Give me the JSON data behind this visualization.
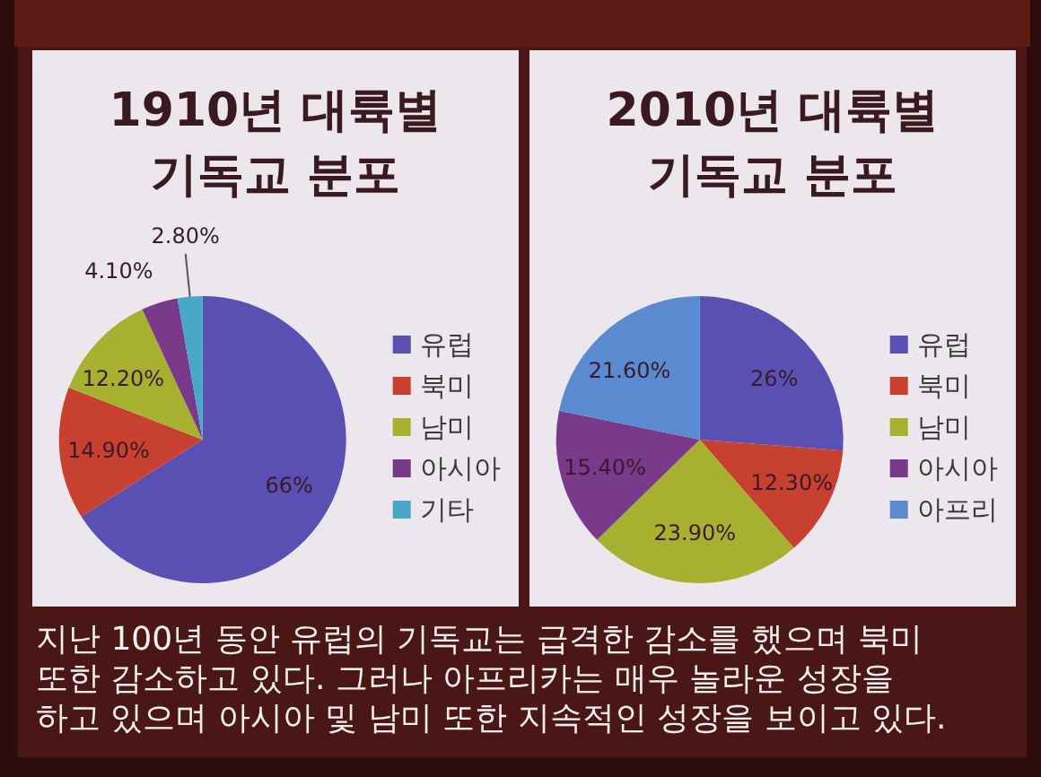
{
  "chart_data": [
    {
      "type": "pie",
      "title": "1910년 대륙별 기독교 분포",
      "categories": [
        "유럽",
        "북미",
        "남미",
        "아시아",
        "기타"
      ],
      "values": [
        66,
        14.9,
        12.2,
        4.1,
        2.8
      ],
      "colors": [
        "#5a50b4",
        "#c84030",
        "#a8b030",
        "#7a3a8c",
        "#48a8c8"
      ],
      "value_labels": [
        "66%",
        "14.90%",
        "12.20%",
        "4.10%",
        "2.80%"
      ],
      "legend": "right"
    },
    {
      "type": "pie",
      "title": "2010년 대륙별 기독교 분포",
      "categories": [
        "유럽",
        "북미",
        "남미",
        "아시아",
        "아프리"
      ],
      "values": [
        26,
        12.3,
        23.9,
        15.4,
        21.6
      ],
      "colors": [
        "#5a50b4",
        "#c84030",
        "#a8b030",
        "#7a3a8c",
        "#5a8ad0"
      ],
      "value_labels": [
        "26%",
        "12.30%",
        "23.90%",
        "15.40%",
        "21.60%"
      ],
      "legend": "right"
    },
    {
      "type": "other",
      "annotations": [
        "지난 100년 동안 유럽의 기독교는 급격한 감소를 했으며 북미 또한 감소하고 있다. 그러나 아프리카는 매우 놀라운 성장을 하고 있으며 아시아 및 남미 또한 지속적인 성장을 보이고 있다."
      ]
    }
  ]
}
